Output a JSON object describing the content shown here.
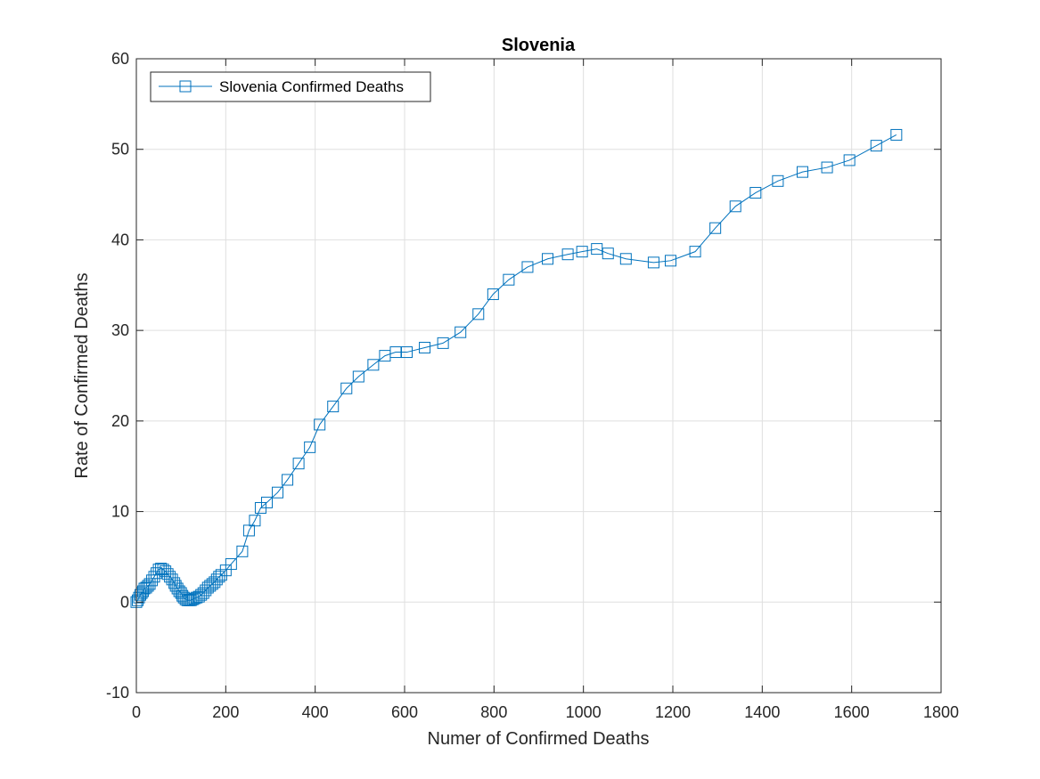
{
  "chart_data": {
    "type": "line",
    "title": "Slovenia",
    "xlabel": "Numer of Confirmed Deaths",
    "ylabel": "Rate of Confirmed Deaths",
    "xlim": [
      0,
      1800
    ],
    "ylim": [
      -10,
      60
    ],
    "xticks": [
      0,
      200,
      400,
      600,
      800,
      1000,
      1200,
      1400,
      1600,
      1800
    ],
    "yticks": [
      -10,
      0,
      10,
      20,
      30,
      40,
      50,
      60
    ],
    "grid": true,
    "legend_position": "top-left",
    "marker": "square",
    "color": "#0072BD",
    "series": [
      {
        "name": "Slovenia Confirmed Deaths",
        "points": [
          [
            0,
            0
          ],
          [
            3,
            0.2
          ],
          [
            6,
            0.5
          ],
          [
            9,
            0.8
          ],
          [
            12,
            1.0
          ],
          [
            15,
            1.2
          ],
          [
            18,
            1.5
          ],
          [
            22,
            1.6
          ],
          [
            26,
            1.8
          ],
          [
            30,
            2.0
          ],
          [
            35,
            2.4
          ],
          [
            40,
            2.8
          ],
          [
            45,
            3.2
          ],
          [
            50,
            3.6
          ],
          [
            55,
            3.7
          ],
          [
            60,
            3.6
          ],
          [
            65,
            3.4
          ],
          [
            70,
            3.1
          ],
          [
            75,
            2.8
          ],
          [
            80,
            2.5
          ],
          [
            85,
            2.1
          ],
          [
            88,
            1.8
          ],
          [
            92,
            1.5
          ],
          [
            96,
            1.2
          ],
          [
            100,
            1.0
          ],
          [
            103,
            0.7
          ],
          [
            106,
            0.5
          ],
          [
            110,
            0.3
          ],
          [
            114,
            0.2
          ],
          [
            118,
            0.2
          ],
          [
            122,
            0.2
          ],
          [
            126,
            0.3
          ],
          [
            130,
            0.4
          ],
          [
            135,
            0.5
          ],
          [
            140,
            0.6
          ],
          [
            145,
            0.8
          ],
          [
            150,
            1.0
          ],
          [
            155,
            1.3
          ],
          [
            160,
            1.6
          ],
          [
            165,
            1.8
          ],
          [
            170,
            2.0
          ],
          [
            175,
            2.2
          ],
          [
            180,
            2.5
          ],
          [
            185,
            2.8
          ],
          [
            190,
            3.0
          ],
          [
            200,
            3.5
          ],
          [
            212,
            4.2
          ],
          [
            237,
            5.6
          ],
          [
            252,
            7.9
          ],
          [
            265,
            9.0
          ],
          [
            278,
            10.4
          ],
          [
            292,
            11.0
          ],
          [
            316,
            12.1
          ],
          [
            338,
            13.5
          ],
          [
            363,
            15.3
          ],
          [
            388,
            17.1
          ],
          [
            410,
            19.6
          ],
          [
            440,
            21.6
          ],
          [
            470,
            23.6
          ],
          [
            497,
            24.9
          ],
          [
            530,
            26.2
          ],
          [
            556,
            27.2
          ],
          [
            580,
            27.6
          ],
          [
            605,
            27.6
          ],
          [
            645,
            28.1
          ],
          [
            686,
            28.6
          ],
          [
            725,
            29.8
          ],
          [
            765,
            31.8
          ],
          [
            798,
            34.0
          ],
          [
            833,
            35.6
          ],
          [
            875,
            37.0
          ],
          [
            920,
            37.9
          ],
          [
            965,
            38.4
          ],
          [
            997,
            38.7
          ],
          [
            1030,
            39.0
          ],
          [
            1055,
            38.5
          ],
          [
            1095,
            37.9
          ],
          [
            1157,
            37.5
          ],
          [
            1195,
            37.7
          ],
          [
            1250,
            38.7
          ],
          [
            1295,
            41.3
          ],
          [
            1340,
            43.7
          ],
          [
            1385,
            45.2
          ],
          [
            1435,
            46.5
          ],
          [
            1490,
            47.5
          ],
          [
            1545,
            48.0
          ],
          [
            1595,
            48.8
          ],
          [
            1655,
            50.4
          ],
          [
            1700,
            51.6
          ]
        ]
      }
    ]
  }
}
